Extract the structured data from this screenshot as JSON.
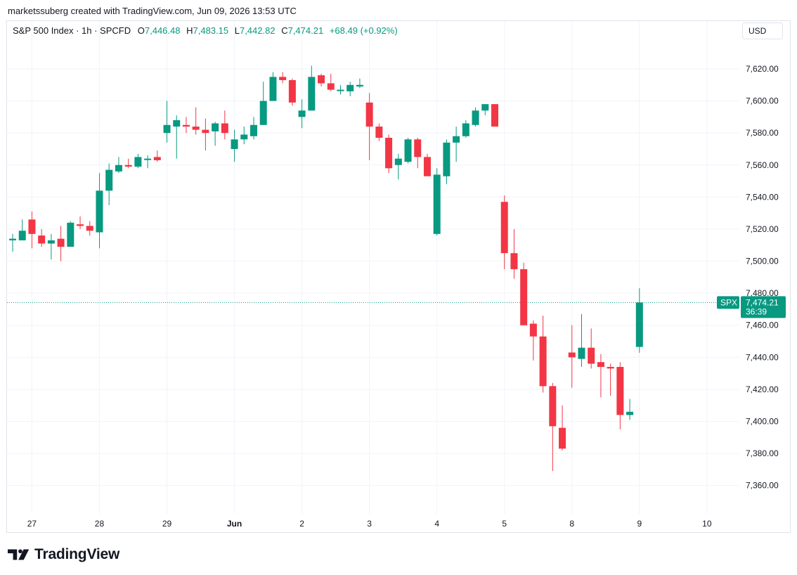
{
  "credit": "marketssuberg created with TradingView.com, Jun 09, 2026 13:53 UTC",
  "header": {
    "symbol": "S&P 500 Index · 1h · SPCFD",
    "o_label": "O",
    "o_value": "7,446.48",
    "h_label": "H",
    "h_value": "7,483.15",
    "l_label": "L",
    "l_value": "7,442.82",
    "c_label": "C",
    "c_value": "7,474.21",
    "change": "+68.49 (+0.92%)"
  },
  "currency": "USD",
  "price_label": {
    "ticker": "SPX",
    "price": "7,474.21",
    "countdown": "36:39"
  },
  "brand": "TradingView",
  "colors": {
    "up": "#089981",
    "down": "#f23645",
    "grid": "#f0f3fa",
    "text": "#131722"
  },
  "chart_data": {
    "type": "candlestick",
    "title": "S&P 500 Index · 1h · SPCFD",
    "y_axis": {
      "ticks": [
        "7,620.00",
        "7,600.00",
        "7,580.00",
        "7,560.00",
        "7,540.00",
        "7,520.00",
        "7,500.00",
        "7,480.00",
        "7,460.00",
        "7,440.00",
        "7,420.00",
        "7,400.00",
        "7,380.00",
        "7,360.00"
      ],
      "ylim": [
        7352,
        7650
      ]
    },
    "x_axis": {
      "ticks": [
        {
          "label": "27",
          "index": 2
        },
        {
          "label": "28",
          "index": 9
        },
        {
          "label": "29",
          "index": 16
        },
        {
          "label": "Jun",
          "index": 23
        },
        {
          "label": "2",
          "index": 30
        },
        {
          "label": "3",
          "index": 37
        },
        {
          "label": "4",
          "index": 44
        },
        {
          "label": "5",
          "index": 51
        },
        {
          "label": "8",
          "index": 58
        },
        {
          "label": "9",
          "index": 65
        },
        {
          "label": "10",
          "index": 72
        }
      ]
    },
    "last_price": 7474.21,
    "candles": [
      {
        "o": 7513,
        "h": 7517,
        "l": 7506,
        "c": 7514
      },
      {
        "o": 7513,
        "h": 7526,
        "l": 7513,
        "c": 7519
      },
      {
        "o": 7526,
        "h": 7531,
        "l": 7508,
        "c": 7517
      },
      {
        "o": 7516,
        "h": 7520,
        "l": 7509,
        "c": 7511
      },
      {
        "o": 7511,
        "h": 7517,
        "l": 7501,
        "c": 7513
      },
      {
        "o": 7514,
        "h": 7522,
        "l": 7500,
        "c": 7509
      },
      {
        "o": 7509,
        "h": 7525,
        "l": 7509,
        "c": 7524
      },
      {
        "o": 7523,
        "h": 7528,
        "l": 7520,
        "c": 7522
      },
      {
        "o": 7522,
        "h": 7525,
        "l": 7516,
        "c": 7519
      },
      {
        "o": 7518,
        "h": 7555,
        "l": 7508,
        "c": 7544
      },
      {
        "o": 7544,
        "h": 7561,
        "l": 7535,
        "c": 7557
      },
      {
        "o": 7556,
        "h": 7565,
        "l": 7555,
        "c": 7560
      },
      {
        "o": 7560,
        "h": 7564,
        "l": 7558,
        "c": 7559
      },
      {
        "o": 7559,
        "h": 7567,
        "l": 7558,
        "c": 7565
      },
      {
        "o": 7564,
        "h": 7566,
        "l": 7558,
        "c": 7564
      },
      {
        "o": 7565,
        "h": 7569,
        "l": 7562,
        "c": 7563
      },
      {
        "o": 7580,
        "h": 7600,
        "l": 7574,
        "c": 7585
      },
      {
        "o": 7584,
        "h": 7591,
        "l": 7564,
        "c": 7588
      },
      {
        "o": 7585,
        "h": 7590,
        "l": 7580,
        "c": 7584
      },
      {
        "o": 7584,
        "h": 7596,
        "l": 7579,
        "c": 7582
      },
      {
        "o": 7582,
        "h": 7589,
        "l": 7569,
        "c": 7580
      },
      {
        "o": 7581,
        "h": 7587,
        "l": 7572,
        "c": 7586
      },
      {
        "o": 7586,
        "h": 7594,
        "l": 7576,
        "c": 7580
      },
      {
        "o": 7570,
        "h": 7582,
        "l": 7562,
        "c": 7576
      },
      {
        "o": 7576,
        "h": 7584,
        "l": 7573,
        "c": 7579
      },
      {
        "o": 7578,
        "h": 7590,
        "l": 7576,
        "c": 7585
      },
      {
        "o": 7585,
        "h": 7612,
        "l": 7585,
        "c": 7600
      },
      {
        "o": 7600,
        "h": 7618,
        "l": 7600,
        "c": 7615
      },
      {
        "o": 7615,
        "h": 7618,
        "l": 7611,
        "c": 7613
      },
      {
        "o": 7613,
        "h": 7614,
        "l": 7597,
        "c": 7599
      },
      {
        "o": 7590,
        "h": 7601,
        "l": 7583,
        "c": 7594
      },
      {
        "o": 7594,
        "h": 7622,
        "l": 7594,
        "c": 7615
      },
      {
        "o": 7616,
        "h": 7617,
        "l": 7609,
        "c": 7611
      },
      {
        "o": 7611,
        "h": 7617,
        "l": 7606,
        "c": 7607
      },
      {
        "o": 7607,
        "h": 7610,
        "l": 7604,
        "c": 7607
      },
      {
        "o": 7606,
        "h": 7612,
        "l": 7603,
        "c": 7610
      },
      {
        "o": 7609,
        "h": 7614,
        "l": 7608,
        "c": 7610
      },
      {
        "o": 7599,
        "h": 7605,
        "l": 7563,
        "c": 7584
      },
      {
        "o": 7584,
        "h": 7586,
        "l": 7575,
        "c": 7577
      },
      {
        "o": 7577,
        "h": 7579,
        "l": 7555,
        "c": 7558
      },
      {
        "o": 7560,
        "h": 7567,
        "l": 7551,
        "c": 7564
      },
      {
        "o": 7562,
        "h": 7577,
        "l": 7561,
        "c": 7576
      },
      {
        "o": 7576,
        "h": 7577,
        "l": 7558,
        "c": 7565
      },
      {
        "o": 7565,
        "h": 7567,
        "l": 7553,
        "c": 7553
      },
      {
        "o": 7517,
        "h": 7558,
        "l": 7516,
        "c": 7554
      },
      {
        "o": 7553,
        "h": 7576,
        "l": 7548,
        "c": 7574
      },
      {
        "o": 7574,
        "h": 7584,
        "l": 7562,
        "c": 7578
      },
      {
        "o": 7578,
        "h": 7588,
        "l": 7577,
        "c": 7586
      },
      {
        "o": 7585,
        "h": 7596,
        "l": 7584,
        "c": 7594
      },
      {
        "o": 7594,
        "h": 7598,
        "l": 7591,
        "c": 7598
      },
      {
        "o": 7598,
        "h": 7598,
        "l": 7584,
        "c": 7584
      },
      {
        "o": 7537,
        "h": 7541,
        "l": 7495,
        "c": 7505
      },
      {
        "o": 7505,
        "h": 7520,
        "l": 7489,
        "c": 7495
      },
      {
        "o": 7495,
        "h": 7499,
        "l": 7460,
        "c": 7460
      },
      {
        "o": 7461,
        "h": 7463,
        "l": 7438,
        "c": 7453
      },
      {
        "o": 7453,
        "h": 7466,
        "l": 7418,
        "c": 7422
      },
      {
        "o": 7422,
        "h": 7424,
        "l": 7369,
        "c": 7397
      },
      {
        "o": 7396,
        "h": 7410,
        "l": 7382,
        "c": 7383
      },
      {
        "o": 7443,
        "h": 7460,
        "l": 7421,
        "c": 7440
      },
      {
        "o": 7439,
        "h": 7467,
        "l": 7434,
        "c": 7446
      },
      {
        "o": 7446,
        "h": 7458,
        "l": 7433,
        "c": 7436
      },
      {
        "o": 7437,
        "h": 7442,
        "l": 7415,
        "c": 7434
      },
      {
        "o": 7434,
        "h": 7436,
        "l": 7416,
        "c": 7433
      },
      {
        "o": 7434,
        "h": 7437,
        "l": 7395,
        "c": 7404
      },
      {
        "o": 7404,
        "h": 7414,
        "l": 7401,
        "c": 7406
      },
      {
        "o": 7446.48,
        "h": 7483.15,
        "l": 7442.82,
        "c": 7474.21
      }
    ]
  }
}
